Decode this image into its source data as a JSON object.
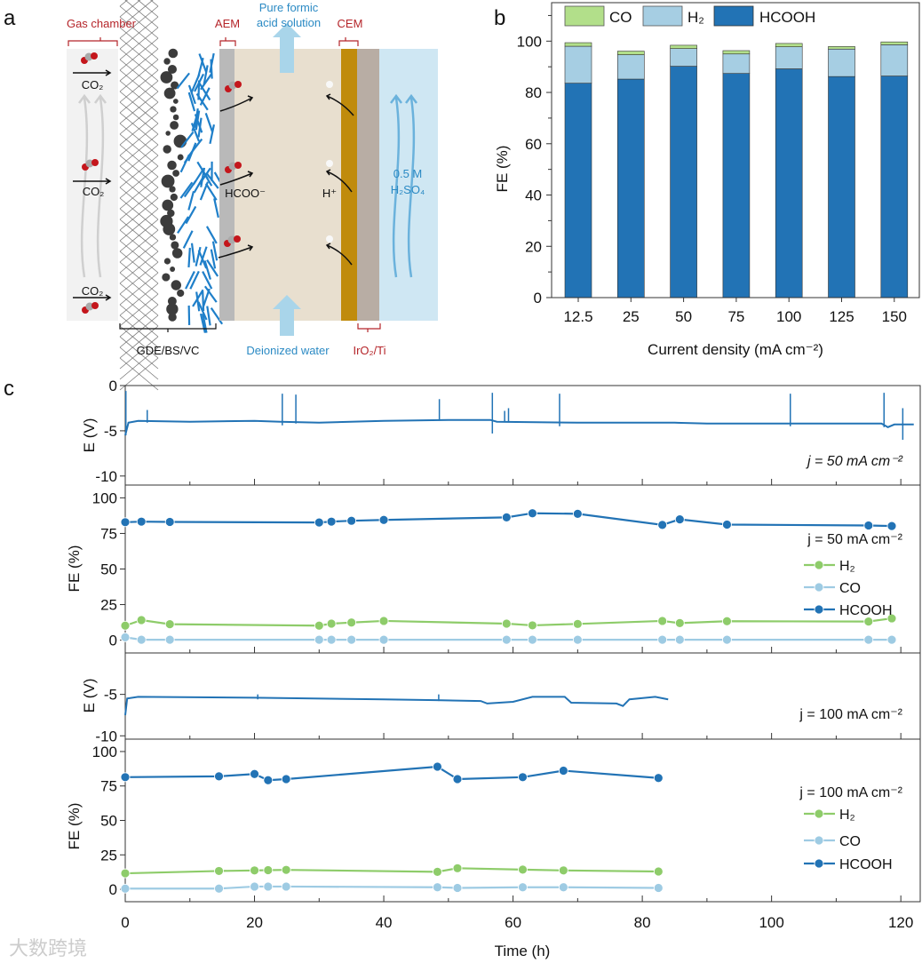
{
  "panel_labels": {
    "a": "a",
    "b": "b",
    "c": "c"
  },
  "diagram": {
    "gas_chamber": "Gas chamber",
    "aem": "AEM",
    "product_line1": "Pure formic",
    "product_line2": "acid solution",
    "cem": "CEM",
    "co2": "CO₂",
    "formate": "HCOO⁻",
    "proton": "H⁺",
    "acid_line1": "0.5 M",
    "acid_line2": "H₂SO₄",
    "gde": "GDE/BS/VC",
    "water": "Deionized water",
    "anode": "IrO₂/Ti",
    "colors": {
      "red_label": "#b5252a",
      "blue_label": "#2b8ac4",
      "cem": "#c08b0c",
      "aem": "#b9b9b9",
      "chamber": "#e8dfcf",
      "acid": "#cfe7f3"
    }
  },
  "chart_data": [
    {
      "type": "bar",
      "stacked": true,
      "categories": [
        "12.5",
        "25",
        "50",
        "75",
        "100",
        "125",
        "150"
      ],
      "series": [
        {
          "name": "HCOOH",
          "color": "#2273b5",
          "values": [
            83.6,
            85.2,
            90.2,
            87.4,
            89.2,
            86.2,
            86.4
          ]
        },
        {
          "name": "H₂",
          "color": "#a6cee3",
          "values": [
            14.4,
            9.5,
            6.9,
            7.6,
            8.6,
            10.7,
            12.2
          ]
        },
        {
          "name": "CO",
          "color": "#b2df8a",
          "values": [
            1.4,
            1.4,
            1.3,
            1.3,
            1.3,
            1.0,
            1.1
          ]
        }
      ],
      "legend_order": [
        "CO",
        "H₂",
        "HCOOH"
      ],
      "xlabel": "Current density (mA cm⁻²)",
      "ylabel": "FE (%)",
      "ylim": [
        0,
        115
      ],
      "yticks": [
        "0",
        "20",
        "40",
        "60",
        "80",
        "100"
      ],
      "legend": "top"
    },
    {
      "type": "line",
      "ylabel": "E (V)",
      "ylim": [
        -11,
        0
      ],
      "yticks": [
        "0",
        "-5",
        "-10"
      ],
      "annotation": "j = 50 mA cm⁻²",
      "trace": [
        [
          0,
          -5.5
        ],
        [
          0.5,
          -4.1
        ],
        [
          2,
          -3.9
        ],
        [
          10,
          -4.0
        ],
        [
          20,
          -3.9
        ],
        [
          24,
          -4.0
        ],
        [
          30,
          -4.1
        ],
        [
          40,
          -3.9
        ],
        [
          50,
          -3.8
        ],
        [
          56.5,
          -3.8
        ],
        [
          57.5,
          -4.0
        ],
        [
          70,
          -4.1
        ],
        [
          85,
          -4.1
        ],
        [
          90,
          -4.2
        ],
        [
          100,
          -4.2
        ],
        [
          110,
          -4.2
        ],
        [
          117,
          -4.2
        ],
        [
          118,
          -4.6
        ],
        [
          119,
          -4.3
        ],
        [
          122,
          -4.3
        ]
      ],
      "spikes": [
        [
          0.1,
          -0.6,
          -5.5
        ],
        [
          3.4,
          -2.7,
          -4.1
        ],
        [
          24.3,
          -0.9,
          -4.4
        ],
        [
          26.4,
          -1.0,
          -4.2
        ],
        [
          48.6,
          -1.5,
          -3.9
        ],
        [
          56.8,
          -0.8,
          -5.3
        ],
        [
          58.7,
          -2.8,
          -4.0
        ],
        [
          59.3,
          -2.5,
          -4.0
        ],
        [
          67.2,
          -0.9,
          -4.5
        ],
        [
          102.9,
          -0.9,
          -4.5
        ],
        [
          117.4,
          -0.8,
          -4.6
        ],
        [
          120.3,
          -2.5,
          -6.0
        ]
      ],
      "color": "#2273b5"
    },
    {
      "type": "line",
      "ylabel": "FE (%)",
      "ylim": [
        -9,
        109
      ],
      "yticks": [
        "0",
        "25",
        "50",
        "75",
        "100"
      ],
      "annotation": "j = 50 mA cm⁻²",
      "x": [
        0,
        2.5,
        6.9,
        30,
        31.9,
        35,
        40,
        59,
        63,
        70,
        83.1,
        85.8,
        93.1,
        115,
        118.6
      ],
      "series": [
        {
          "name": "H₂",
          "color": "#8ecc6a",
          "values": [
            10.2,
            14.1,
            11.2,
            10.2,
            11.6,
            12.4,
            13.5,
            11.6,
            10.4,
            11.4,
            13.5,
            12.0,
            13.3,
            13.1,
            15.3
          ]
        },
        {
          "name": "CO",
          "color": "#9ecbe3",
          "values": [
            2.0,
            0.3,
            0.3,
            0.3,
            0.3,
            0.3,
            0.3,
            0.3,
            0.3,
            0.3,
            0.3,
            0.3,
            0.3,
            0.3,
            0.3
          ]
        },
        {
          "name": "HCOOH",
          "color": "#2273b5",
          "values": [
            82.9,
            83.3,
            83.1,
            82.7,
            83.3,
            83.9,
            84.5,
            86.3,
            89.2,
            88.8,
            81.0,
            84.9,
            81.2,
            80.6,
            80.2
          ]
        }
      ],
      "legend": "right"
    },
    {
      "type": "line",
      "ylabel": "E (V)",
      "ylim": [
        -10.4,
        0
      ],
      "yticks": [
        "-5",
        "-10"
      ],
      "annotation": "j = 100 mA cm⁻²",
      "trace": [
        [
          0,
          -7.5
        ],
        [
          0.3,
          -5.5
        ],
        [
          2,
          -5.3
        ],
        [
          20,
          -5.4
        ],
        [
          40,
          -5.6
        ],
        [
          48,
          -5.7
        ],
        [
          55,
          -5.8
        ],
        [
          56,
          -6.1
        ],
        [
          60,
          -5.9
        ],
        [
          63,
          -5.3
        ],
        [
          68,
          -5.3
        ],
        [
          69,
          -6.0
        ],
        [
          76,
          -6.1
        ],
        [
          77,
          -6.4
        ],
        [
          78,
          -5.6
        ],
        [
          82,
          -5.3
        ],
        [
          84,
          -5.6
        ]
      ],
      "spikes": [
        [
          20.5,
          -5.0,
          -5.6
        ],
        [
          48.5,
          -5.0,
          -5.8
        ]
      ],
      "color": "#2273b5"
    },
    {
      "type": "line",
      "ylabel": "FE (%)",
      "ylim": [
        -9,
        109
      ],
      "yticks": [
        "0",
        "25",
        "50",
        "75",
        "100"
      ],
      "annotation": "j = 100 mA cm⁻²",
      "x": [
        0,
        14.5,
        20,
        22.1,
        24.9,
        48.3,
        51.4,
        61.5,
        67.8,
        82.5
      ],
      "series": [
        {
          "name": "H₂",
          "color": "#8ecc6a",
          "values": [
            11.6,
            13.3,
            13.7,
            13.9,
            14.1,
            12.7,
            15.3,
            14.3,
            13.7,
            12.9
          ]
        },
        {
          "name": "CO",
          "color": "#9ecbe3",
          "values": [
            0.5,
            0.5,
            2.0,
            2.0,
            2.0,
            1.5,
            1.0,
            1.5,
            1.5,
            1.0
          ]
        },
        {
          "name": "HCOOH",
          "color": "#2273b5",
          "values": [
            81.4,
            82.0,
            83.7,
            79.2,
            80.0,
            89.0,
            80.0,
            81.4,
            86.1,
            80.8
          ]
        }
      ],
      "legend": "right",
      "xlabel": "Time (h)",
      "xlim": [
        0,
        123
      ],
      "xticks": [
        "0",
        "20",
        "40",
        "60",
        "80",
        "100",
        "120"
      ]
    }
  ],
  "watermark": "大数跨境"
}
